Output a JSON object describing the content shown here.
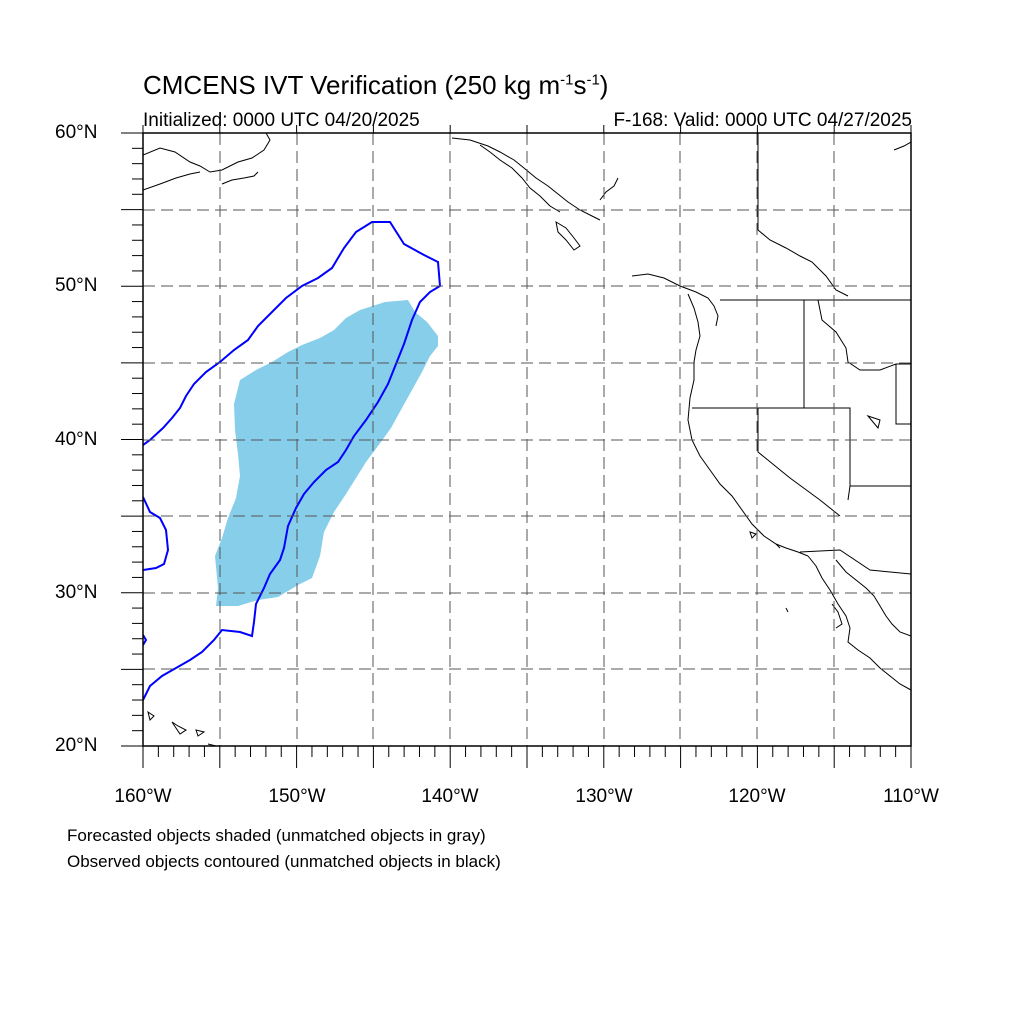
{
  "title": {
    "main": "CMCENS IVT Verification (250 kg m",
    "exp1": "-1",
    "mid": "s",
    "exp2": "-1",
    "end": ")"
  },
  "subtitle": {
    "initialized": "Initialized: 0000 UTC 04/20/2025",
    "valid": "F-168: Valid: 0000 UTC 04/27/2025"
  },
  "axes": {
    "lon_range": [
      -160,
      -110
    ],
    "lat_range": [
      20,
      60
    ],
    "lon_labels": [
      "160°W",
      "150°W",
      "140°W",
      "130°W",
      "120°W",
      "110°W"
    ],
    "lat_labels": [
      "60°N",
      "50°N",
      "40°N",
      "30°N",
      "20°N"
    ],
    "grid": "dashed every 5 degrees"
  },
  "colors": {
    "forecast_fill": "#87ceeb",
    "observed_contour": "#0000ff",
    "coastline": "#000000"
  },
  "footer": {
    "line1": "Forecasted objects shaded (unmatched objects in gray)",
    "line2": "Observed objects contoured (unmatched objects in black)"
  }
}
